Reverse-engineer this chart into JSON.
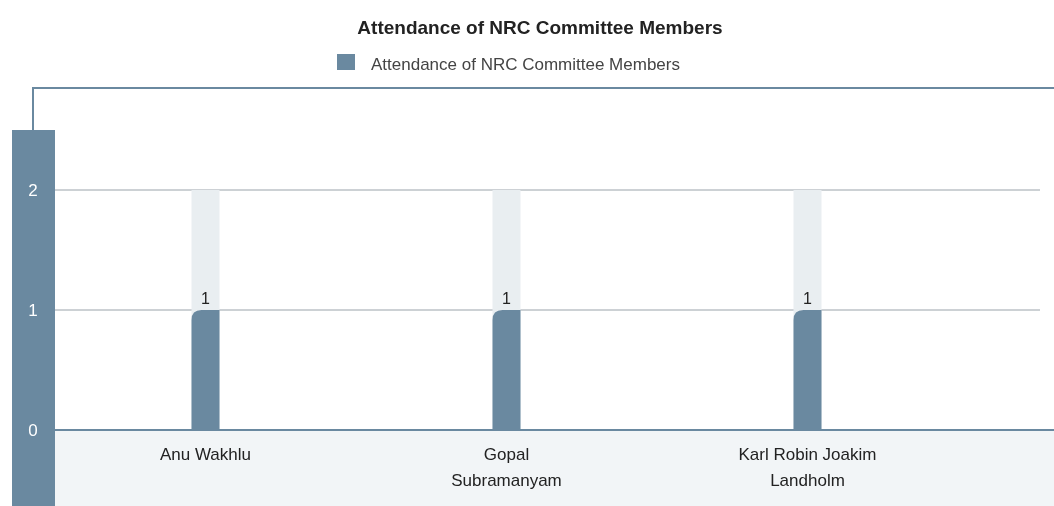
{
  "chart_data": {
    "type": "bar",
    "title": "Attendance of NRC Committee Members",
    "categories": [
      "Anu Wakhlu",
      "Gopal Subramanyam",
      "Karl Robin Joakim Landholm"
    ],
    "series": [
      {
        "name": "Attendance of NRC Committee Members",
        "color": "#6a89a0",
        "values": [
          1,
          1,
          1
        ]
      }
    ],
    "ylim": [
      0,
      2
    ],
    "yticks": [
      0,
      1,
      2
    ],
    "grid": "y",
    "legend": "top",
    "data_labels": true
  }
}
